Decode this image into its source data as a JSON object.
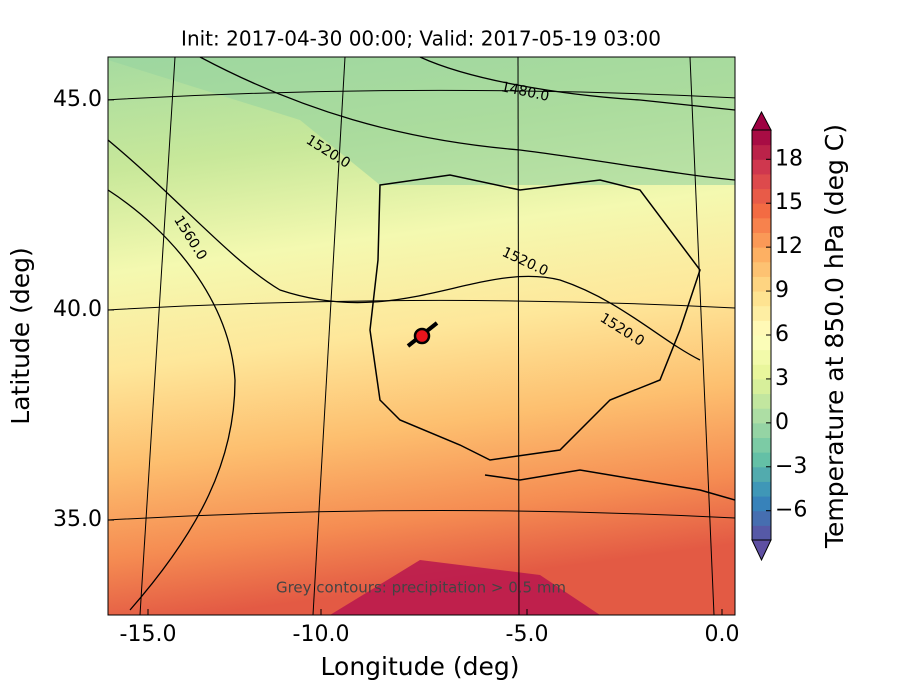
{
  "map": {
    "title": "Init: 2017-04-30 00:00; Valid: 2017-05-19 03:00",
    "x_axis": {
      "label": "Longitude (deg)",
      "ticks": [
        {
          "value": -15,
          "label": "-15.0"
        },
        {
          "value": -10,
          "label": "-10.0"
        },
        {
          "value": -5,
          "label": "-5.0"
        },
        {
          "value": 0,
          "label": "0.0"
        }
      ]
    },
    "y_axis": {
      "label": "Latitude (deg)",
      "ylim": [
        32.74,
        46.02
      ],
      "ticks": [
        {
          "value": 35,
          "label": "35.0"
        },
        {
          "value": 40,
          "label": "40.0"
        },
        {
          "value": 45,
          "label": "45.0"
        }
      ]
    },
    "colorbar": {
      "label": "Temperature at 850.0 hPa (deg C)",
      "lim": [
        -8,
        20
      ],
      "ticks": [
        {
          "value": -6,
          "label": "−6"
        },
        {
          "value": -3,
          "label": "−3"
        },
        0,
        3,
        6,
        9,
        12,
        15,
        18
      ],
      "colors": [
        "#5e4fa2",
        "#3288bd",
        "#66c2a5",
        "#abdda4",
        "#e6f598",
        "#ffffbf",
        "#fee08b",
        "#fdae61",
        "#f46d43",
        "#d53e4f",
        "#9e0142"
      ]
    },
    "contour_labels": [
      {
        "value": 1480,
        "label": "1480.0"
      },
      {
        "value": 1520,
        "label": "1520.0"
      },
      {
        "value": 1560,
        "label": "1560.0"
      },
      {
        "value": 1520,
        "label": "1520.0"
      },
      {
        "value": 1520,
        "label": "1520.0"
      }
    ],
    "annotation": "Grey contours: precipitation > 0.5 mm",
    "marker_color": "#e8141c"
  }
}
